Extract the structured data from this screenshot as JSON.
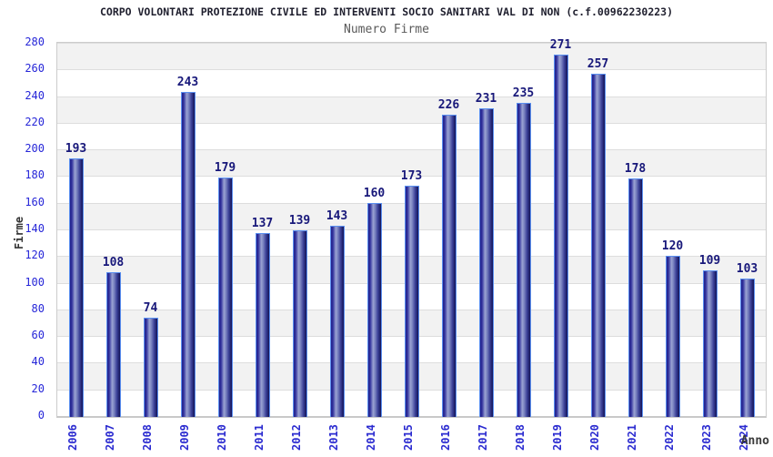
{
  "header": {
    "title": "CORPO VOLONTARI PROTEZIONE CIVILE ED INTERVENTI SOCIO SANITARI VAL DI NON (c.f.00962230223)",
    "subtitle": "Numero Firme"
  },
  "chart_data": {
    "type": "bar",
    "title": "CORPO VOLONTARI PROTEZIONE CIVILE ED INTERVENTI SOCIO SANITARI VAL DI NON (c.f.00962230223)",
    "subtitle": "Numero Firme",
    "xlabel": "Anno",
    "ylabel": "Firme",
    "categories": [
      "2006",
      "2007",
      "2008",
      "2009",
      "2010",
      "2011",
      "2012",
      "2013",
      "2014",
      "2015",
      "2016",
      "2017",
      "2018",
      "2019",
      "2020",
      "2021",
      "2022",
      "2023",
      "2024"
    ],
    "values": [
      193,
      108,
      74,
      243,
      179,
      137,
      139,
      143,
      160,
      173,
      226,
      231,
      235,
      271,
      257,
      178,
      120,
      109,
      103
    ],
    "ylim": [
      0,
      280
    ],
    "ytick_step": 20,
    "grid": true,
    "legend": "none",
    "band_colors": {
      "even": "#ffffff",
      "odd": "#f2f2f2"
    },
    "colors": {
      "bar_border": "#5a8ff0",
      "bar_edge_dark": "#23238c",
      "bar_center_light": "#9aa2d2",
      "bar_right_dark": "#131356",
      "value_label": "#18187a",
      "tick_label": "#2626d8",
      "title": "#1f1f2e",
      "subtitle": "#5a5a5a",
      "axis_label": "#333333",
      "gridline": "#dddddd"
    }
  }
}
